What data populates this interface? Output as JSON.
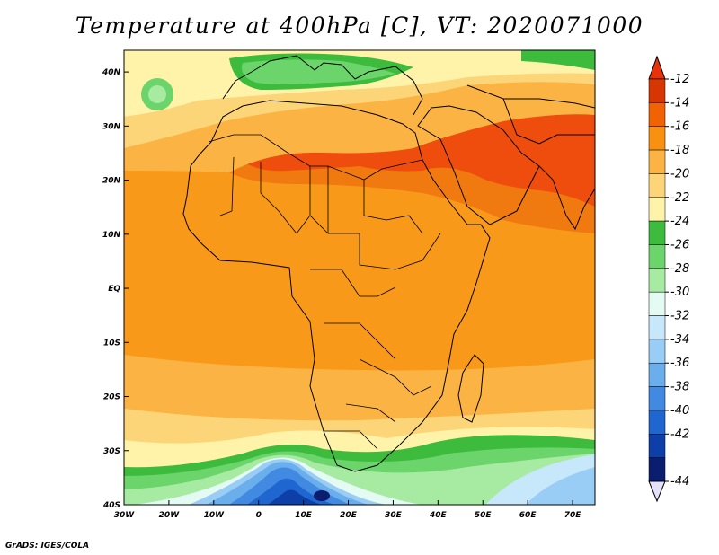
{
  "title": "Temperature at 400hPa [C], VT: 2020071000",
  "credit": "GrADS: IGES/COLA",
  "map": {
    "lon_ticks": [
      "30W",
      "20W",
      "10W",
      "0",
      "10E",
      "20E",
      "30E",
      "40E",
      "50E",
      "60E",
      "70E"
    ],
    "lat_ticks": [
      "40N",
      "30N",
      "20N",
      "10N",
      "EQ",
      "10S",
      "20S",
      "30S",
      "40S"
    ],
    "lon_range": [
      -30,
      75
    ],
    "lat_range": [
      -40,
      44
    ]
  },
  "colorbar": {
    "labels": [
      "-12",
      "-14",
      "-16",
      "-18",
      "-20",
      "-22",
      "-24",
      "-26",
      "-28",
      "-30",
      "-32",
      "-34",
      "-36",
      "-38",
      "-40",
      "-42",
      "-44"
    ],
    "colors": [
      "#d73502",
      "#f06202",
      "#f99110",
      "#fbb444",
      "#fdd579",
      "#fef3a8",
      "#3cbb3c",
      "#6bd46b",
      "#a7eaa2",
      "#e4fbf3",
      "#c7e7fb",
      "#9acdf5",
      "#6aaeeb",
      "#4189e1",
      "#1f66d0",
      "#0e3fa9",
      "#0a1d6e"
    ],
    "top_arrow_color": "#e8320a",
    "bottom_arrow_color": "#e6e0f8"
  },
  "field_colors": {
    "deep_red": "#ee4d0e",
    "red_orange": "#f07a10",
    "orange": "#f9991a",
    "light_orange": "#fbb444",
    "yellow": "#fdd579",
    "pale_yellow": "#fef3a8",
    "green": "#3cbb3c",
    "mid_green": "#6bd46b",
    "light_green": "#a7eaa2",
    "mint": "#e4fbf3",
    "pale_blue": "#c7e7fb",
    "sky_blue": "#9acdf5",
    "blue": "#6aaeeb",
    "mid_blue": "#4189e1",
    "deep_blue": "#1f66d0",
    "navy": "#0e3fa9",
    "darkest": "#0a1d6e",
    "coast_line": "#000000"
  }
}
